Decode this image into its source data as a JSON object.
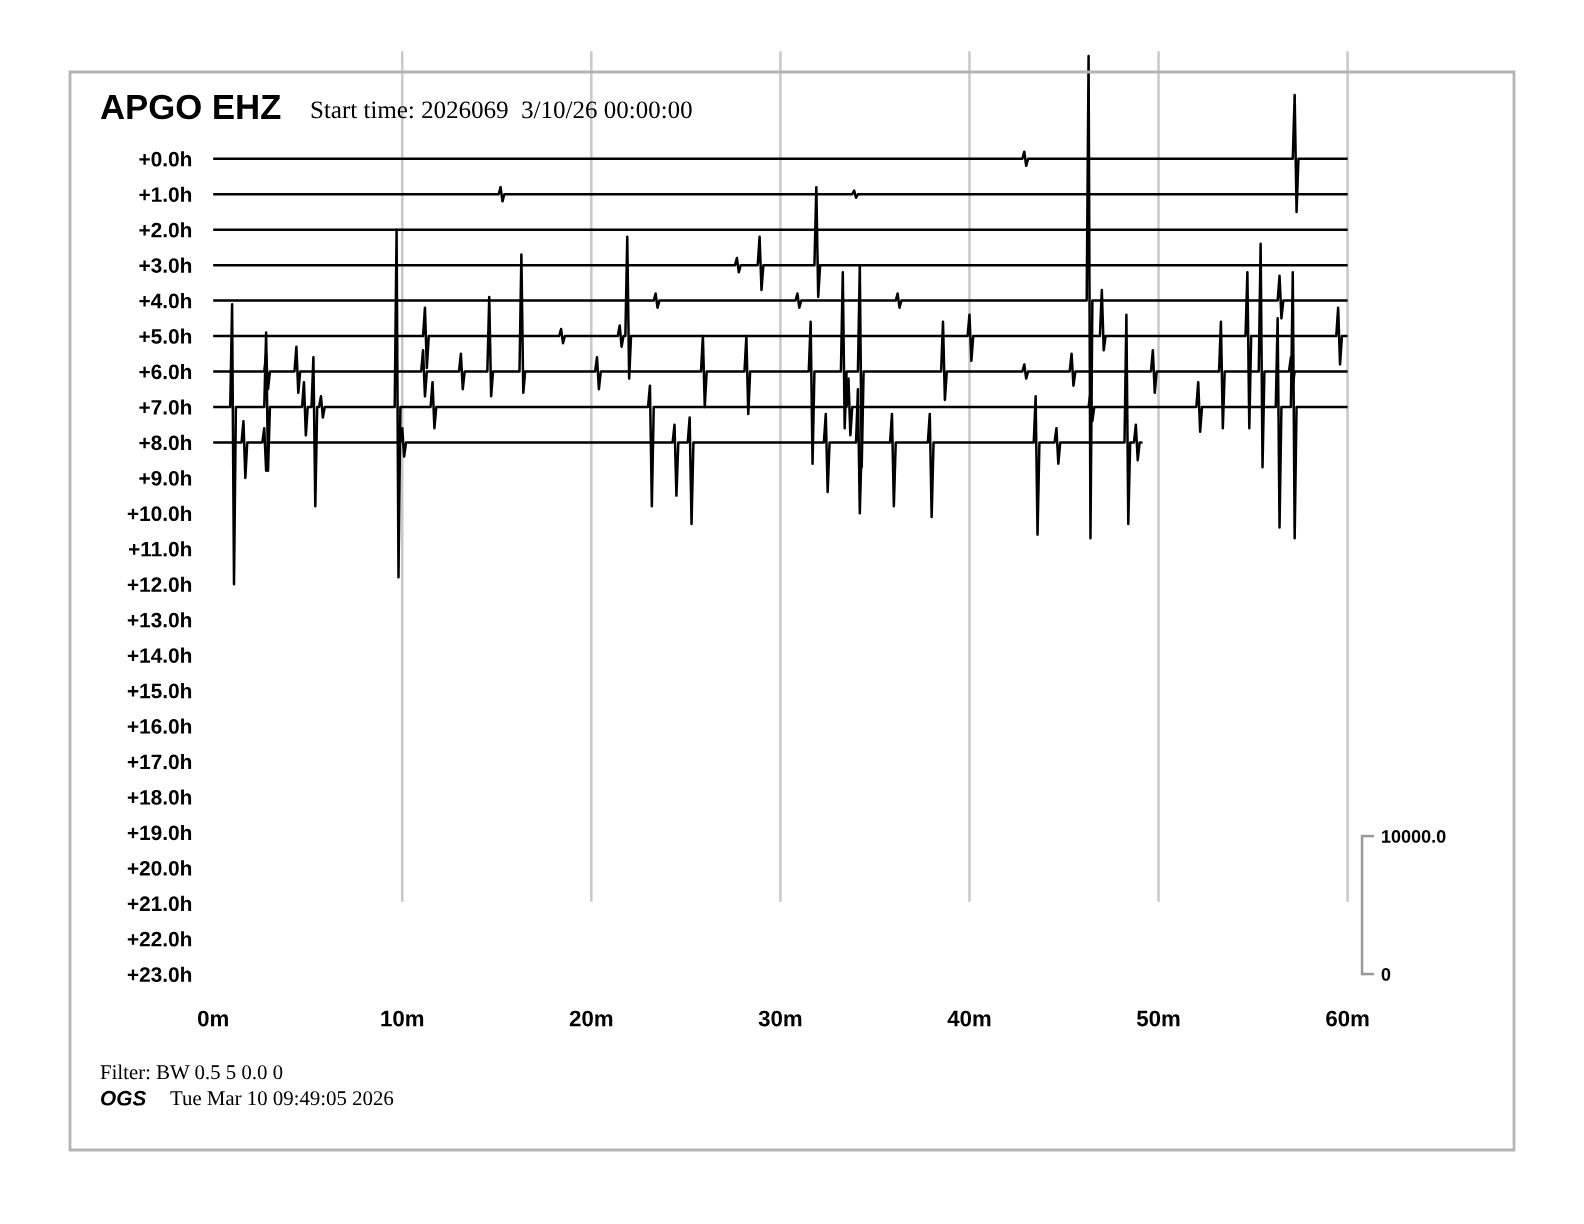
{
  "chart_data": {
    "type": "line",
    "title": "APGO EHZ",
    "subtitle": "Start time: 2026069  3/10/26 00:00:00",
    "annotations": [
      "Filter: BW 0.5 5 0.0 0",
      "OGS",
      "Tue Mar 10 09:49:05 2026"
    ],
    "xlim": [
      0,
      60
    ],
    "xticks": [
      {
        "value": 0,
        "label": "0m"
      },
      {
        "value": 10,
        "label": "10m"
      },
      {
        "value": 20,
        "label": "20m"
      },
      {
        "value": 30,
        "label": "30m"
      },
      {
        "value": 40,
        "label": "40m"
      },
      {
        "value": 50,
        "label": "50m"
      },
      {
        "value": 60,
        "label": "60m"
      }
    ],
    "ylim": [
      23.5,
      -3.0
    ],
    "yticks": [
      {
        "value": 0,
        "label": "+0.0h"
      },
      {
        "value": 1,
        "label": "+1.0h"
      },
      {
        "value": 2,
        "label": "+2.0h"
      },
      {
        "value": 3,
        "label": "+3.0h"
      },
      {
        "value": 4,
        "label": "+4.0h"
      },
      {
        "value": 5,
        "label": "+5.0h"
      },
      {
        "value": 6,
        "label": "+6.0h"
      },
      {
        "value": 7,
        "label": "+7.0h"
      },
      {
        "value": 8,
        "label": "+8.0h"
      },
      {
        "value": 9,
        "label": "+9.0h"
      },
      {
        "value": 10,
        "label": "+10.0h"
      },
      {
        "value": 11,
        "label": "+11.0h"
      },
      {
        "value": 12,
        "label": "+12.0h"
      },
      {
        "value": 13,
        "label": "+13.0h"
      },
      {
        "value": 14,
        "label": "+14.0h"
      },
      {
        "value": 15,
        "label": "+15.0h"
      },
      {
        "value": 16,
        "label": "+16.0h"
      },
      {
        "value": 17,
        "label": "+17.0h"
      },
      {
        "value": 18,
        "label": "+18.0h"
      },
      {
        "value": 19,
        "label": "+19.0h"
      },
      {
        "value": 20,
        "label": "+20.0h"
      },
      {
        "value": 21,
        "label": "+21.0h"
      },
      {
        "value": 22,
        "label": "+22.0h"
      },
      {
        "value": 23,
        "label": "+23.0h"
      }
    ],
    "y2lim": [
      -1300,
      66800
    ],
    "y2ticks": [
      0,
      {
        "value": 10000,
        "label": "10000.0"
      }
    ],
    "grid": "x",
    "series": [
      {
        "color": "#000000",
        "x": [
          0,
          42.8,
          42.9,
          43.0,
          43.1,
          57.1,
          57.2,
          57.3,
          57.4,
          60
        ],
        "values": [
          0,
          0,
          -0.2,
          0.2,
          0,
          0,
          -1.8,
          1.5,
          0,
          0
        ]
      },
      {
        "color": "#000000",
        "x": [
          0,
          15.1,
          15.2,
          15.3,
          15.4,
          33.8,
          33.9,
          34.0,
          34.1,
          60
        ],
        "values": [
          1,
          1,
          0.8,
          1.2,
          1,
          1,
          0.9,
          1.1,
          1,
          1
        ]
      },
      {
        "color": "#000000",
        "x": [
          0,
          60
        ],
        "values": [
          2,
          2
        ]
      },
      {
        "color": "#000000",
        "x": [
          0,
          27.6,
          27.7,
          27.8,
          27.9,
          28.8,
          28.9,
          29.0,
          29.1,
          31.8,
          31.9,
          32.0,
          32.1,
          60
        ],
        "values": [
          3,
          3,
          2.8,
          3.2,
          3,
          3,
          2.2,
          3.7,
          3,
          3,
          0.8,
          3.9,
          3,
          3
        ]
      },
      {
        "color": "#000000",
        "x": [
          0,
          23.3,
          23.4,
          23.5,
          23.6,
          30.8,
          30.9,
          31.0,
          31.1,
          36.1,
          36.2,
          36.3,
          36.4,
          46.2,
          46.3,
          46.4,
          46.5,
          56.3,
          56.4,
          56.5,
          56.6,
          60
        ],
        "values": [
          4,
          4,
          3.8,
          4.2,
          4,
          4,
          3.8,
          4.2,
          4,
          4,
          3.8,
          4.2,
          4,
          4,
          -2.9,
          10.7,
          4,
          4,
          3.3,
          4.5,
          4,
          4
        ]
      },
      {
        "color": "#000000",
        "x": [
          0,
          11.1,
          11.2,
          11.3,
          11.4,
          18.3,
          18.4,
          18.5,
          18.6,
          21.4,
          21.5,
          21.6,
          21.7,
          21.8,
          21.9,
          22.0,
          22.1,
          39.9,
          40.0,
          40.1,
          40.2,
          46.9,
          47.0,
          47.1,
          47.2,
          54.6,
          54.7,
          54.8,
          54.9,
          59.4,
          59.5,
          59.6,
          59.7,
          60
        ],
        "values": [
          5,
          5,
          4.2,
          5.9,
          5,
          5,
          4.8,
          5.2,
          5,
          5,
          4.7,
          5.3,
          5,
          5,
          2.2,
          6.2,
          5,
          5,
          4.4,
          5.7,
          5,
          5,
          3.7,
          5.4,
          5,
          5,
          3.2,
          7.6,
          5,
          5,
          4.2,
          5.8,
          5,
          5
        ]
      },
      {
        "color": "#000000",
        "x": [
          0,
          2.7,
          2.8,
          2.9,
          3.0,
          4.3,
          4.4,
          4.5,
          4.6,
          11.0,
          11.1,
          11.2,
          11.3,
          13.0,
          13.1,
          13.2,
          13.3,
          14.5,
          14.6,
          14.7,
          14.8,
          16.2,
          16.3,
          16.4,
          16.5,
          20.2,
          20.3,
          20.4,
          20.5,
          25.8,
          25.9,
          26.0,
          26.1,
          28.1,
          28.2,
          28.3,
          28.4,
          31.5,
          31.6,
          31.7,
          31.8,
          33.2,
          33.3,
          33.4,
          33.5,
          34.1,
          34.2,
          34.3,
          34.4,
          38.5,
          38.6,
          38.7,
          38.8,
          42.8,
          42.9,
          43.0,
          43.1,
          45.3,
          45.4,
          45.5,
          45.6,
          49.6,
          49.7,
          49.8,
          49.9,
          53.2,
          53.3,
          53.4,
          53.5,
          55.3,
          55.4,
          55.5,
          55.6,
          56.9,
          57.0,
          57.1,
          57.2,
          60
        ],
        "values": [
          6,
          6,
          5.5,
          6.5,
          6,
          6,
          5.3,
          6.6,
          6,
          6,
          5.4,
          6.7,
          6,
          6,
          5.5,
          6.5,
          6,
          6,
          3.9,
          6.7,
          6,
          6,
          2.7,
          6.6,
          6,
          6,
          5.6,
          6.5,
          6,
          6,
          5.0,
          7.0,
          6,
          6,
          5.0,
          7.2,
          6,
          6,
          4.6,
          8.6,
          6,
          6,
          3.2,
          7.6,
          6,
          6,
          3.0,
          8.7,
          6,
          6,
          4.6,
          6.8,
          6,
          6,
          5.8,
          6.2,
          6,
          6,
          5.5,
          6.4,
          6,
          6,
          5.4,
          6.6,
          6,
          6,
          4.6,
          7.6,
          6,
          6,
          2.4,
          8.7,
          6,
          6,
          5.6,
          6.4,
          6,
          6
        ]
      },
      {
        "color": "#000000",
        "x": [
          0,
          0.9,
          1.0,
          1.1,
          1.2,
          2.7,
          2.8,
          2.9,
          3.0,
          4.7,
          4.8,
          4.9,
          5.0,
          5.2,
          5.3,
          5.4,
          5.5,
          5.6,
          5.7,
          5.8,
          5.9,
          9.6,
          9.7,
          9.8,
          9.9,
          11.5,
          11.6,
          11.7,
          11.8,
          23.0,
          23.1,
          23.2,
          23.3,
          33.5,
          33.6,
          33.7,
          33.8,
          46.3,
          46.4,
          46.5,
          46.6,
          52.0,
          52.1,
          52.2,
          52.3,
          56.2,
          56.3,
          56.4,
          56.5,
          57.0,
          57.1,
          57.2,
          57.3,
          60
        ],
        "values": [
          7,
          7,
          4.1,
          12.0,
          7,
          7,
          4.9,
          8.8,
          7,
          7,
          6.3,
          7.8,
          7,
          7,
          5.6,
          9.8,
          7,
          7,
          6.7,
          7.3,
          7,
          7,
          2.0,
          11.8,
          7,
          7,
          6.3,
          7.6,
          7,
          7,
          6.4,
          9.8,
          7,
          7,
          6.2,
          7.8,
          7,
          7,
          6.6,
          7.4,
          7,
          7,
          6.3,
          7.7,
          7,
          7,
          4.5,
          10.4,
          7,
          7,
          3.2,
          10.7,
          7,
          7
        ]
      },
      {
        "color": "#000000",
        "x": [
          0,
          1.5,
          1.6,
          1.7,
          1.8,
          2.6,
          2.7,
          2.8,
          2.9,
          9.9,
          10.0,
          10.1,
          10.2,
          24.3,
          24.4,
          24.5,
          24.6,
          25.1,
          25.2,
          25.3,
          25.4,
          32.3,
          32.4,
          32.5,
          32.6,
          34.0,
          34.1,
          34.2,
          34.3,
          35.8,
          35.9,
          36.0,
          36.1,
          37.8,
          37.9,
          38.0,
          38.1,
          43.4,
          43.5,
          43.6,
          43.7,
          44.5,
          44.6,
          44.7,
          44.8,
          48.2,
          48.3,
          48.4,
          48.5,
          48.7,
          48.8,
          48.9,
          49.0,
          49.1
        ],
        "values": [
          8,
          8,
          7.4,
          9.0,
          8,
          8,
          7.6,
          8.8,
          8,
          8,
          7.6,
          8.4,
          8,
          8,
          7.5,
          9.5,
          8,
          8,
          7.3,
          10.3,
          8,
          8,
          7.2,
          9.4,
          8,
          8,
          6.5,
          10.0,
          8,
          8,
          7.2,
          9.8,
          8,
          8,
          7.2,
          10.1,
          8,
          8,
          6.7,
          10.6,
          8,
          8,
          7.6,
          8.6,
          8,
          8,
          4.4,
          10.3,
          8,
          8,
          7.5,
          8.5,
          8,
          8
        ]
      }
    ]
  }
}
